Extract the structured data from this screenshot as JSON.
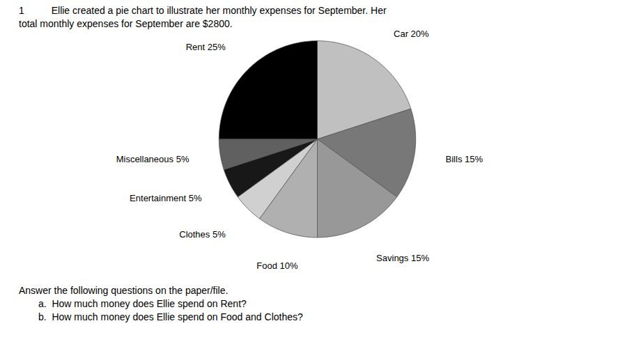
{
  "chart_data": {
    "type": "pie",
    "title": "1          Ellie created a pie chart to illustrate her monthly expenses for September. Her",
    "subtitle": "total monthly expenses for September are $2800.",
    "categories": [
      "Car 20%",
      "Bills 15%",
      "Savings 15%",
      "Food 10%",
      "Clothes 5%",
      "Entertainment 5%",
      "Miscellaneous 5%",
      "Rent 25%"
    ],
    "values": [
      20,
      15,
      15,
      10,
      5,
      5,
      5,
      25
    ],
    "colors": [
      "#c0c0c0",
      "#787878",
      "#989898",
      "#b0b0b0",
      "#d0d0d0",
      "#181818",
      "#606060",
      "#000000"
    ],
    "annotations": [
      "Answer the following questions on the paper/file.",
      "a.  How much money does Ellie spend on Rent?",
      "b.  How much money does Ellie spend on Food and Clothes?"
    ]
  }
}
